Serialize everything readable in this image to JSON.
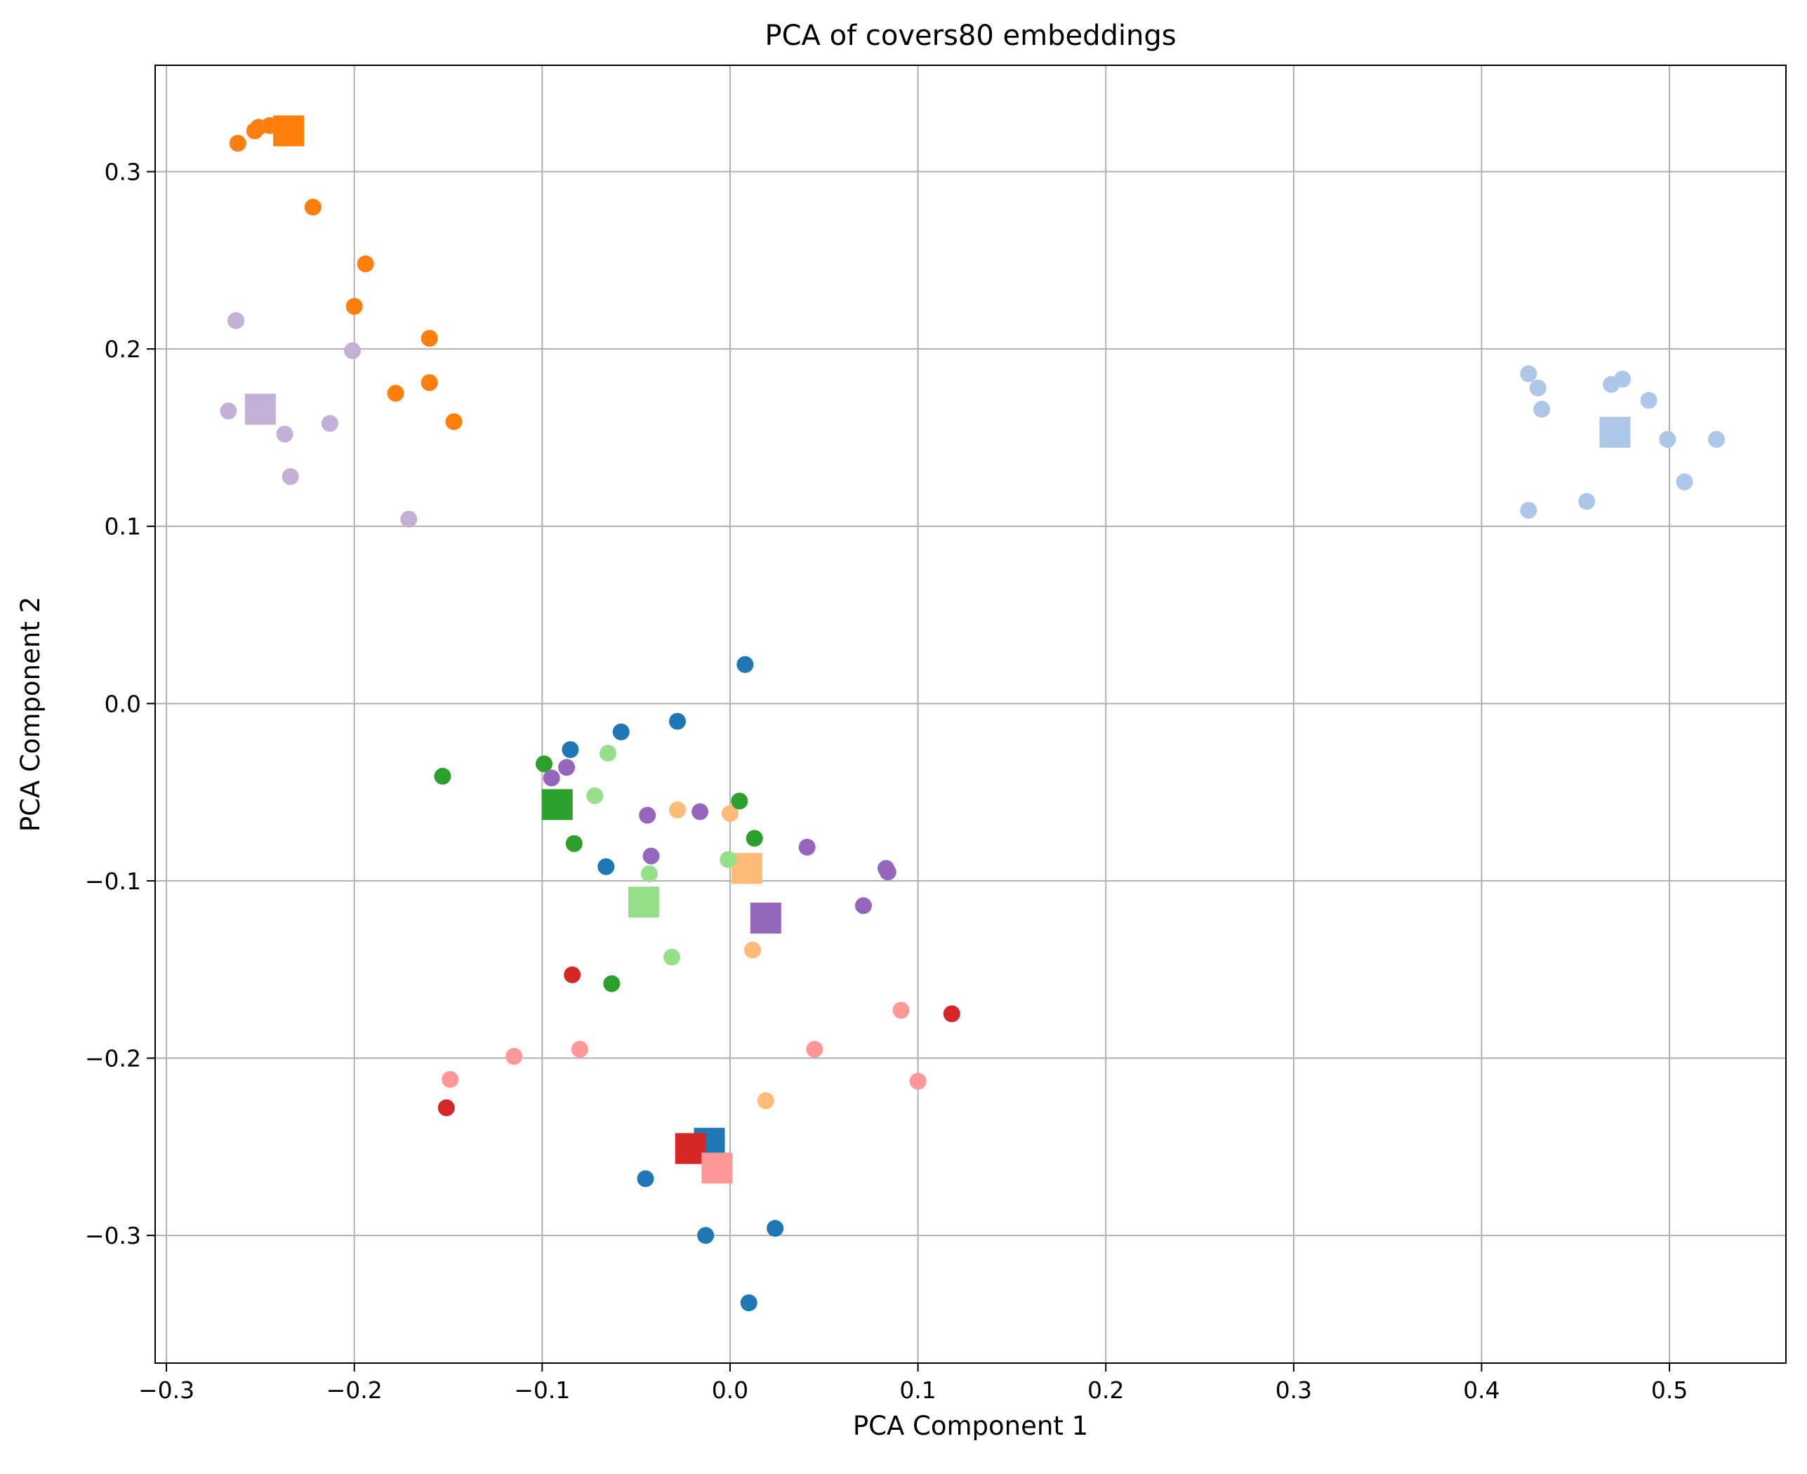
{
  "chart_data": {
    "type": "scatter",
    "title": "PCA of covers80 embeddings",
    "xlabel": "PCA Component 1",
    "ylabel": "PCA Component 2",
    "xlim": [
      -0.306,
      0.562
    ],
    "ylim": [
      -0.372,
      0.36
    ],
    "xticks": [
      -0.3,
      -0.2,
      -0.1,
      0.0,
      0.1,
      0.2,
      0.3,
      0.4,
      0.5
    ],
    "yticks": [
      -0.3,
      -0.2,
      -0.1,
      0.0,
      0.1,
      0.2,
      0.3
    ],
    "xtick_labels": [
      "−0.3",
      "−0.2",
      "−0.1",
      "0.0",
      "0.1",
      "0.2",
      "0.3",
      "0.4",
      "0.5"
    ],
    "ytick_labels": [
      "−0.3",
      "−0.2",
      "−0.1",
      "0.0",
      "0.1",
      "0.2",
      "0.3"
    ],
    "grid": true,
    "series": [
      {
        "color": "#1f77b4",
        "points": [
          [
            0.008,
            0.022
          ],
          [
            -0.028,
            -0.01
          ],
          [
            -0.058,
            -0.016
          ],
          [
            -0.085,
            -0.026
          ],
          [
            -0.066,
            -0.092
          ],
          [
            -0.045,
            -0.268
          ],
          [
            -0.013,
            -0.3
          ],
          [
            0.024,
            -0.296
          ],
          [
            0.01,
            -0.338
          ]
        ],
        "centroid": [
          -0.011,
          -0.248
        ]
      },
      {
        "color": "#aec7e8",
        "points": [
          [
            0.425,
            0.186
          ],
          [
            0.43,
            0.178
          ],
          [
            0.432,
            0.166
          ],
          [
            0.469,
            0.18
          ],
          [
            0.475,
            0.183
          ],
          [
            0.489,
            0.171
          ],
          [
            0.499,
            0.149
          ],
          [
            0.525,
            0.149
          ],
          [
            0.508,
            0.125
          ],
          [
            0.456,
            0.114
          ],
          [
            0.425,
            0.109
          ]
        ],
        "centroid": [
          0.471,
          0.153
        ]
      },
      {
        "color": "#ff7f0e",
        "points": [
          [
            -0.262,
            0.316
          ],
          [
            -0.253,
            0.323
          ],
          [
            -0.251,
            0.325
          ],
          [
            -0.245,
            0.326
          ],
          [
            -0.24,
            0.325
          ],
          [
            -0.222,
            0.28
          ],
          [
            -0.194,
            0.248
          ],
          [
            -0.2,
            0.224
          ],
          [
            -0.16,
            0.206
          ],
          [
            -0.16,
            0.181
          ],
          [
            -0.178,
            0.175
          ],
          [
            -0.147,
            0.159
          ]
        ],
        "centroid": [
          -0.235,
          0.323
        ]
      },
      {
        "color": "#ffbb78",
        "points": [
          [
            -0.028,
            -0.06
          ],
          [
            0.0,
            -0.062
          ],
          [
            0.012,
            -0.139
          ],
          [
            0.019,
            -0.224
          ]
        ],
        "centroid": [
          0.009,
          -0.093
        ]
      },
      {
        "color": "#2ca02c",
        "points": [
          [
            -0.153,
            -0.041
          ],
          [
            -0.099,
            -0.034
          ],
          [
            -0.083,
            -0.079
          ],
          [
            0.005,
            -0.055
          ],
          [
            0.013,
            -0.076
          ],
          [
            -0.063,
            -0.158
          ]
        ],
        "centroid": [
          -0.092,
          -0.057
        ]
      },
      {
        "color": "#98df8a",
        "points": [
          [
            -0.065,
            -0.028
          ],
          [
            -0.072,
            -0.052
          ],
          [
            -0.043,
            -0.096
          ],
          [
            -0.001,
            -0.088
          ],
          [
            -0.031,
            -0.143
          ]
        ],
        "centroid": [
          -0.046,
          -0.112
        ]
      },
      {
        "color": "#d62728",
        "points": [
          [
            -0.084,
            -0.153
          ],
          [
            0.118,
            -0.175
          ],
          [
            -0.151,
            -0.228
          ]
        ],
        "centroid": [
          -0.021,
          -0.251
        ]
      },
      {
        "color": "#ff9896",
        "points": [
          [
            -0.115,
            -0.199
          ],
          [
            -0.08,
            -0.195
          ],
          [
            -0.149,
            -0.212
          ],
          [
            0.045,
            -0.195
          ],
          [
            0.091,
            -0.173
          ],
          [
            0.1,
            -0.213
          ]
        ],
        "centroid": [
          -0.007,
          -0.262
        ]
      },
      {
        "color": "#9467bd",
        "points": [
          [
            -0.095,
            -0.042
          ],
          [
            -0.087,
            -0.036
          ],
          [
            -0.044,
            -0.063
          ],
          [
            -0.016,
            -0.061
          ],
          [
            -0.042,
            -0.086
          ],
          [
            0.041,
            -0.081
          ],
          [
            0.083,
            -0.093
          ],
          [
            0.084,
            -0.095
          ],
          [
            0.071,
            -0.114
          ]
        ],
        "centroid": [
          0.019,
          -0.121
        ]
      },
      {
        "color": "#c5b0d5",
        "points": [
          [
            -0.263,
            0.216
          ],
          [
            -0.201,
            0.199
          ],
          [
            -0.267,
            0.165
          ],
          [
            -0.237,
            0.152
          ],
          [
            -0.213,
            0.158
          ],
          [
            -0.234,
            0.128
          ],
          [
            -0.171,
            0.104
          ]
        ],
        "centroid": [
          -0.25,
          0.166
        ]
      }
    ]
  }
}
